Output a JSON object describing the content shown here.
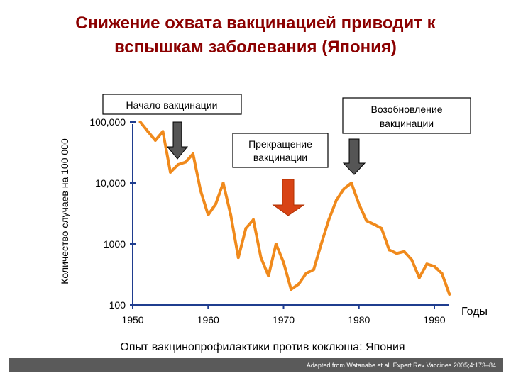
{
  "slide": {
    "title_line1": "Снижение охвата вакцинацией приводит к",
    "title_line2": "вспышкам заболевания (Япония)",
    "footer": "Adapted from Watanabe et al. Expert Rev Vaccines 2005;4:173–84",
    "accent_color": "#8b0000",
    "line_color": "#f08a1c",
    "axis_color": "#1f3d8f"
  },
  "chart_data": {
    "type": "line",
    "title": "",
    "xlabel": "Годы",
    "ylabel": "Количество случаев на 100 000",
    "caption": "Опыт вакцинопрофилактики против коклюша: Япония",
    "y_scale": "log",
    "ylim": [
      100,
      200000
    ],
    "xlim": [
      1950,
      1993
    ],
    "x_ticks": [
      1950,
      1960,
      1970,
      1980,
      1990
    ],
    "y_ticks": [
      {
        "value": 100,
        "label": "100"
      },
      {
        "value": 1000,
        "label": "1000"
      },
      {
        "value": 10000,
        "label": "10,000"
      },
      {
        "value": 100000,
        "label": "100,000"
      }
    ],
    "x": [
      1951,
      1952,
      1953,
      1954,
      1955,
      1956,
      1957,
      1958,
      1959,
      1960,
      1961,
      1962,
      1963,
      1964,
      1965,
      1966,
      1967,
      1968,
      1969,
      1970,
      1971,
      1972,
      1973,
      1974,
      1975,
      1976,
      1977,
      1978,
      1979,
      1980,
      1981,
      1982,
      1983,
      1984,
      1985,
      1986,
      1987,
      1988,
      1989,
      1990,
      1991,
      1992
    ],
    "values": [
      100000,
      70000,
      50000,
      70000,
      15000,
      20000,
      22000,
      30000,
      7500,
      3000,
      4500,
      10000,
      3000,
      600,
      1800,
      2500,
      600,
      300,
      1000,
      500,
      180,
      220,
      330,
      380,
      1000,
      2500,
      5200,
      8000,
      10000,
      4500,
      2400,
      2100,
      1800,
      800,
      700,
      750,
      550,
      280,
      470,
      430,
      330,
      150
    ],
    "annotations": [
      {
        "text_lines": [
          "Начало вакцинации"
        ],
        "year": 1956,
        "arrow": "dark"
      },
      {
        "text_lines": [
          "Прекращение",
          "вакцинации"
        ],
        "year": 1973,
        "arrow": "red"
      },
      {
        "text_lines": [
          "Возобновление",
          "вакцинации"
        ],
        "year": 1980,
        "arrow": "dark"
      }
    ]
  }
}
